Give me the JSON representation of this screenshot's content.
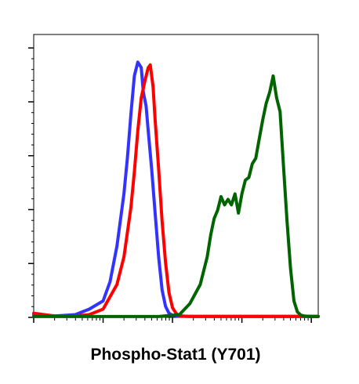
{
  "chart_data": {
    "type": "line",
    "title": "",
    "xlabel": "Phospho-Stat1 (Y701)",
    "ylabel": "",
    "x_scale": "log",
    "xlim": [
      -1,
      3.1
    ],
    "ylim": [
      0,
      100
    ],
    "grid": false,
    "legend": "none",
    "series": [
      {
        "color": "#3333ff",
        "x": [
          -1.0,
          -0.7,
          -0.4,
          -0.2,
          0.0,
          0.1,
          0.2,
          0.3,
          0.35,
          0.4,
          0.45,
          0.5,
          0.55,
          0.58,
          0.62,
          0.65,
          0.7,
          0.75,
          0.8,
          0.85,
          0.9,
          0.95,
          1.0,
          1.1,
          1.3,
          1.6,
          2.0,
          2.5,
          3.1
        ],
        "y": [
          1,
          0.5,
          1,
          3,
          6,
          13,
          26,
          45,
          58,
          74,
          88,
          93,
          91,
          82,
          77,
          68,
          54,
          38,
          22,
          10,
          4,
          1.5,
          0.8,
          0.4,
          0.3,
          0.3,
          0.3,
          0.3,
          0.3
        ]
      },
      {
        "color": "#ff0000",
        "x": [
          -1.0,
          -0.7,
          -0.4,
          -0.2,
          0.0,
          0.2,
          0.3,
          0.4,
          0.45,
          0.5,
          0.55,
          0.6,
          0.65,
          0.68,
          0.72,
          0.75,
          0.8,
          0.85,
          0.9,
          0.95,
          1.0,
          1.05,
          1.1,
          1.2,
          1.4,
          1.7,
          2.0,
          2.5,
          3.1
        ],
        "y": [
          1.5,
          0.5,
          0.5,
          1,
          3,
          12,
          22,
          40,
          53,
          68,
          80,
          86,
          91,
          92,
          84,
          72,
          54,
          35,
          20,
          9,
          3.5,
          1.5,
          0.6,
          0.4,
          0.4,
          0.4,
          0.4,
          0.4,
          0.4
        ]
      },
      {
        "color": "#006400",
        "x": [
          -1.0,
          0.0,
          0.8,
          1.1,
          1.25,
          1.4,
          1.5,
          1.55,
          1.6,
          1.65,
          1.7,
          1.75,
          1.8,
          1.85,
          1.9,
          1.95,
          2.0,
          2.05,
          2.1,
          2.15,
          2.2,
          2.25,
          2.3,
          2.35,
          2.4,
          2.45,
          2.5,
          2.55,
          2.6,
          2.65,
          2.7,
          2.75,
          2.8,
          2.85,
          2.9,
          3.0,
          3.1
        ],
        "y": [
          0.3,
          0.3,
          0.3,
          1,
          5,
          12,
          22,
          30,
          36,
          39,
          44,
          41,
          43,
          41,
          45,
          38,
          45,
          50,
          51,
          56,
          58,
          65,
          72,
          78,
          82,
          88,
          80,
          75,
          55,
          35,
          18,
          6,
          2,
          0.8,
          0.5,
          0.3,
          0.3
        ]
      }
    ]
  }
}
